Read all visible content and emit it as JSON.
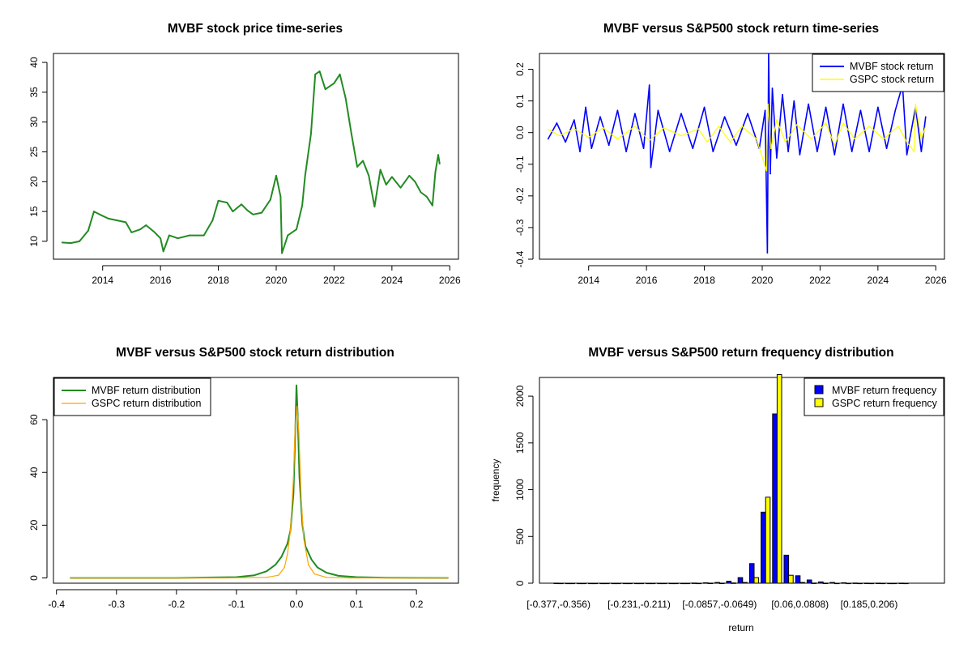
{
  "chart_data": [
    {
      "id": "price",
      "type": "line",
      "title": "MVBF stock price time-series",
      "xlabel": "",
      "ylabel": "",
      "xlim": [
        2012.3,
        2026.3
      ],
      "ylim": [
        7,
        41.5
      ],
      "x_ticks": [
        2014,
        2016,
        2018,
        2020,
        2022,
        2024,
        2026
      ],
      "x_tick_labels": [
        "2014",
        "2016",
        "2018",
        "2020",
        "2022",
        "2024",
        "2026"
      ],
      "y_ticks": [
        10,
        15,
        20,
        25,
        30,
        35,
        40
      ],
      "y_tick_labels": [
        "10",
        "15",
        "20",
        "25",
        "30",
        "35",
        "40"
      ],
      "series": [
        {
          "name": "MVBF",
          "color": "#228B22",
          "points": [
            [
              2012.6,
              9.8
            ],
            [
              2012.9,
              9.7
            ],
            [
              2013.2,
              10.0
            ],
            [
              2013.5,
              11.8
            ],
            [
              2013.7,
              15.0
            ],
            [
              2013.9,
              14.5
            ],
            [
              2014.2,
              13.8
            ],
            [
              2014.5,
              13.5
            ],
            [
              2014.8,
              13.2
            ],
            [
              2015.0,
              11.5
            ],
            [
              2015.3,
              12.0
            ],
            [
              2015.5,
              12.7
            ],
            [
              2015.8,
              11.5
            ],
            [
              2016.0,
              10.5
            ],
            [
              2016.1,
              8.3
            ],
            [
              2016.3,
              11.0
            ],
            [
              2016.6,
              10.5
            ],
            [
              2017.0,
              11.0
            ],
            [
              2017.5,
              11.0
            ],
            [
              2017.8,
              13.5
            ],
            [
              2018.0,
              16.8
            ],
            [
              2018.3,
              16.5
            ],
            [
              2018.5,
              15.0
            ],
            [
              2018.8,
              16.2
            ],
            [
              2019.0,
              15.2
            ],
            [
              2019.2,
              14.5
            ],
            [
              2019.5,
              14.8
            ],
            [
              2019.8,
              17.0
            ],
            [
              2020.0,
              21.0
            ],
            [
              2020.15,
              17.5
            ],
            [
              2020.2,
              8.0
            ],
            [
              2020.4,
              11.0
            ],
            [
              2020.7,
              12.0
            ],
            [
              2020.9,
              16.0
            ],
            [
              2021.0,
              21.0
            ],
            [
              2021.2,
              28.0
            ],
            [
              2021.35,
              38.0
            ],
            [
              2021.5,
              38.5
            ],
            [
              2021.7,
              35.5
            ],
            [
              2022.0,
              36.5
            ],
            [
              2022.2,
              38.0
            ],
            [
              2022.4,
              34.0
            ],
            [
              2022.6,
              28.0
            ],
            [
              2022.8,
              22.5
            ],
            [
              2023.0,
              23.5
            ],
            [
              2023.2,
              21.0
            ],
            [
              2023.4,
              15.8
            ],
            [
              2023.6,
              22.0
            ],
            [
              2023.8,
              19.5
            ],
            [
              2024.0,
              20.8
            ],
            [
              2024.3,
              19.0
            ],
            [
              2024.6,
              21.0
            ],
            [
              2024.8,
              20.0
            ],
            [
              2025.0,
              18.2
            ],
            [
              2025.2,
              17.5
            ],
            [
              2025.4,
              16.0
            ],
            [
              2025.5,
              21.5
            ],
            [
              2025.6,
              24.5
            ],
            [
              2025.65,
              23.0
            ]
          ]
        }
      ]
    },
    {
      "id": "returns",
      "type": "line",
      "title": "MVBF versus S&P500 stock return time-series",
      "xlabel": "",
      "ylabel": "",
      "xlim": [
        2012.3,
        2026.3
      ],
      "ylim": [
        -0.4,
        0.25
      ],
      "x_ticks": [
        2014,
        2016,
        2018,
        2020,
        2022,
        2024,
        2026
      ],
      "x_tick_labels": [
        "2014",
        "2016",
        "2018",
        "2020",
        "2022",
        "2024",
        "2026"
      ],
      "y_ticks": [
        -0.4,
        -0.3,
        -0.2,
        -0.1,
        0.0,
        0.1,
        0.2
      ],
      "y_tick_labels": [
        "-0.4",
        "-0.3",
        "-0.2",
        "-0.1",
        "0.0",
        "0.1",
        "0.2"
      ],
      "legend": {
        "position": "top-right",
        "entries": [
          {
            "label": "MVBF stock return",
            "color": "#0000FF"
          },
          {
            "label": "GSPC stock return",
            "color": "#FFFF00"
          }
        ]
      },
      "series": [
        {
          "name": "MVBF stock return",
          "color": "#0000FF",
          "points": [
            [
              2012.6,
              -0.02
            ],
            [
              2012.9,
              0.03
            ],
            [
              2013.2,
              -0.03
            ],
            [
              2013.5,
              0.04
            ],
            [
              2013.7,
              -0.06
            ],
            [
              2013.9,
              0.08
            ],
            [
              2014.1,
              -0.05
            ],
            [
              2014.4,
              0.05
            ],
            [
              2014.7,
              -0.04
            ],
            [
              2015.0,
              0.07
            ],
            [
              2015.3,
              -0.06
            ],
            [
              2015.6,
              0.06
            ],
            [
              2015.9,
              -0.05
            ],
            [
              2016.1,
              0.15
            ],
            [
              2016.15,
              -0.11
            ],
            [
              2016.4,
              0.07
            ],
            [
              2016.8,
              -0.06
            ],
            [
              2017.2,
              0.06
            ],
            [
              2017.6,
              -0.05
            ],
            [
              2018.0,
              0.08
            ],
            [
              2018.3,
              -0.06
            ],
            [
              2018.7,
              0.05
            ],
            [
              2019.1,
              -0.04
            ],
            [
              2019.5,
              0.06
            ],
            [
              2019.9,
              -0.05
            ],
            [
              2020.1,
              0.07
            ],
            [
              2020.18,
              -0.38
            ],
            [
              2020.22,
              0.25
            ],
            [
              2020.28,
              -0.13
            ],
            [
              2020.35,
              0.14
            ],
            [
              2020.5,
              -0.08
            ],
            [
              2020.7,
              0.12
            ],
            [
              2020.9,
              -0.06
            ],
            [
              2021.1,
              0.1
            ],
            [
              2021.3,
              -0.07
            ],
            [
              2021.6,
              0.09
            ],
            [
              2021.9,
              -0.06
            ],
            [
              2022.2,
              0.08
            ],
            [
              2022.5,
              -0.07
            ],
            [
              2022.8,
              0.09
            ],
            [
              2023.1,
              -0.06
            ],
            [
              2023.4,
              0.07
            ],
            [
              2023.7,
              -0.06
            ],
            [
              2024.0,
              0.08
            ],
            [
              2024.3,
              -0.05
            ],
            [
              2024.6,
              0.07
            ],
            [
              2024.85,
              0.15
            ],
            [
              2025.0,
              -0.07
            ],
            [
              2025.3,
              0.08
            ],
            [
              2025.5,
              -0.06
            ],
            [
              2025.65,
              0.05
            ]
          ]
        },
        {
          "name": "GSPC stock return",
          "color": "#FFFF00",
          "points": [
            [
              2012.6,
              0.01
            ],
            [
              2013.0,
              -0.01
            ],
            [
              2013.5,
              0.012
            ],
            [
              2014.0,
              -0.015
            ],
            [
              2014.5,
              0.015
            ],
            [
              2015.0,
              -0.02
            ],
            [
              2015.6,
              0.02
            ],
            [
              2016.1,
              -0.025
            ],
            [
              2016.6,
              0.015
            ],
            [
              2017.2,
              -0.01
            ],
            [
              2017.8,
              0.012
            ],
            [
              2018.1,
              -0.03
            ],
            [
              2018.5,
              0.02
            ],
            [
              2018.9,
              -0.03
            ],
            [
              2019.3,
              0.02
            ],
            [
              2019.8,
              -0.02
            ],
            [
              2020.15,
              -0.12
            ],
            [
              2020.2,
              0.09
            ],
            [
              2020.3,
              -0.05
            ],
            [
              2020.5,
              0.04
            ],
            [
              2020.8,
              -0.03
            ],
            [
              2021.2,
              0.025
            ],
            [
              2021.7,
              -0.02
            ],
            [
              2022.2,
              0.03
            ],
            [
              2022.5,
              -0.04
            ],
            [
              2022.8,
              0.03
            ],
            [
              2023.2,
              -0.02
            ],
            [
              2023.7,
              0.02
            ],
            [
              2024.2,
              -0.02
            ],
            [
              2024.7,
              0.02
            ],
            [
              2025.0,
              -0.03
            ],
            [
              2025.25,
              -0.06
            ],
            [
              2025.3,
              0.09
            ],
            [
              2025.5,
              -0.02
            ],
            [
              2025.65,
              0.02
            ]
          ]
        }
      ]
    },
    {
      "id": "density",
      "type": "line",
      "title": "MVBF versus S&P500 stock return distribution",
      "xlabel": "",
      "ylabel": "",
      "xlim": [
        -0.405,
        0.27
      ],
      "ylim": [
        -2,
        76
      ],
      "x_ticks": [
        -0.4,
        -0.3,
        -0.2,
        -0.1,
        0.0,
        0.1,
        0.2
      ],
      "x_tick_labels": [
        "-0.4",
        "-0.3",
        "-0.2",
        "-0.1",
        "0.0",
        "0.1",
        "0.2"
      ],
      "y_ticks": [
        0,
        20,
        40,
        60
      ],
      "y_tick_labels": [
        "0",
        "20",
        "40",
        "60"
      ],
      "legend": {
        "position": "top-left",
        "entries": [
          {
            "label": "MVBF return distribution",
            "color": "#228B22"
          },
          {
            "label": "GSPC return distribution",
            "color": "#FFA500"
          }
        ]
      },
      "series": [
        {
          "name": "MVBF return distribution",
          "color": "#228B22",
          "points": [
            [
              -0.377,
              0
            ],
            [
              -0.2,
              0
            ],
            [
              -0.1,
              0.3
            ],
            [
              -0.07,
              1.0
            ],
            [
              -0.05,
              2.5
            ],
            [
              -0.035,
              5.0
            ],
            [
              -0.025,
              8.0
            ],
            [
              -0.015,
              13.0
            ],
            [
              -0.01,
              18.0
            ],
            [
              -0.005,
              32.0
            ],
            [
              -0.002,
              55.0
            ],
            [
              0.0,
              73.0
            ],
            [
              0.002,
              62.0
            ],
            [
              0.005,
              38.0
            ],
            [
              0.01,
              20.0
            ],
            [
              0.015,
              12.0
            ],
            [
              0.025,
              7.0
            ],
            [
              0.035,
              4.0
            ],
            [
              0.05,
              2.0
            ],
            [
              0.07,
              0.8
            ],
            [
              0.1,
              0.3
            ],
            [
              0.15,
              0.1
            ],
            [
              0.253,
              0
            ]
          ]
        },
        {
          "name": "GSPC return distribution",
          "color": "#FFA500",
          "points": [
            [
              -0.377,
              0
            ],
            [
              -0.12,
              0
            ],
            [
              -0.05,
              0.2
            ],
            [
              -0.03,
              1.0
            ],
            [
              -0.02,
              4.0
            ],
            [
              -0.015,
              9.0
            ],
            [
              -0.01,
              18.0
            ],
            [
              -0.005,
              38.0
            ],
            [
              -0.002,
              58.0
            ],
            [
              0.001,
              65.0
            ],
            [
              0.004,
              55.0
            ],
            [
              0.008,
              30.0
            ],
            [
              0.012,
              15.0
            ],
            [
              0.02,
              5.0
            ],
            [
              0.03,
              1.5
            ],
            [
              0.05,
              0.2
            ],
            [
              0.09,
              0
            ],
            [
              0.253,
              0
            ]
          ]
        }
      ]
    },
    {
      "id": "frequency",
      "type": "bar",
      "title": "MVBF versus S&P500 return frequency distribution",
      "xlabel": "return",
      "ylabel": "frequency",
      "ylim": [
        0,
        2200
      ],
      "y_ticks": [
        0,
        500,
        1000,
        1500,
        2000
      ],
      "y_tick_labels": [
        "0",
        "500",
        "1000",
        "1500",
        "2000"
      ],
      "x_tick_labels_shown": [
        {
          "label": "[-0.377,-0.356)",
          "bin_index": 0
        },
        {
          "label": "[-0.231,-0.211)",
          "bin_index": 7
        },
        {
          "label": "[-0.0857,-0.0649)",
          "bin_index": 14
        },
        {
          "label": "[0.06,0.0808)",
          "bin_index": 21
        },
        {
          "label": "[0.185,0.206)",
          "bin_index": 27
        }
      ],
      "legend": {
        "position": "top-right",
        "entries": [
          {
            "label": "MVBF return frequency",
            "color": "#0000FF"
          },
          {
            "label": "GSPC return frequency",
            "color": "#FFFF00"
          }
        ]
      },
      "bins": 31,
      "series": [
        {
          "name": "MVBF return frequency",
          "color": "#0000FF",
          "values": [
            1,
            0,
            0,
            0,
            0,
            0,
            0,
            0,
            0,
            0,
            0,
            0,
            2,
            4,
            8,
            22,
            60,
            210,
            760,
            1810,
            300,
            80,
            35,
            14,
            8,
            4,
            2,
            1,
            1,
            0,
            1
          ]
        },
        {
          "name": "GSPC return frequency",
          "color": "#FFFF00",
          "values": [
            0,
            0,
            0,
            0,
            0,
            0,
            0,
            0,
            0,
            0,
            0,
            0,
            0,
            1,
            1,
            3,
            8,
            60,
            920,
            2230,
            85,
            8,
            2,
            1,
            0,
            0,
            0,
            0,
            0,
            0,
            0
          ]
        }
      ]
    }
  ]
}
